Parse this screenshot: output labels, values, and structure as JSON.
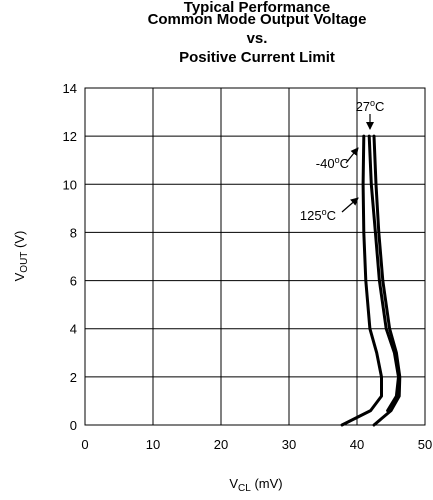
{
  "chart_data": {
    "type": "line",
    "title_partial": "Typical Performance",
    "title_lines": [
      "Common Mode Output Voltage",
      "vs.",
      "Positive Current Limit"
    ],
    "xlabel_main": "V",
    "xlabel_sub": "CL",
    "xlabel_unit": " (mV)",
    "ylabel_main": "V",
    "ylabel_sub": "OUT",
    "ylabel_unit": " (V)",
    "xlim": [
      0,
      50
    ],
    "ylim": [
      0,
      14
    ],
    "x_ticks": [
      "0",
      "10",
      "20",
      "30",
      "40",
      "50"
    ],
    "y_ticks": [
      "0",
      "2",
      "4",
      "6",
      "8",
      "10",
      "12",
      "14"
    ],
    "grid": true,
    "series": [
      {
        "name": "27°C",
        "points": [
          [
            42.5,
            0.0
          ],
          [
            45.0,
            0.6
          ],
          [
            46.2,
            1.2
          ],
          [
            46.3,
            2.0
          ],
          [
            45.8,
            3.0
          ],
          [
            44.8,
            4.0
          ],
          [
            43.8,
            6.0
          ],
          [
            43.2,
            8.0
          ],
          [
            42.8,
            10.0
          ],
          [
            42.5,
            12.0
          ]
        ]
      },
      {
        "name": "-40°C",
        "points": [
          [
            44.5,
            0.6
          ],
          [
            45.8,
            1.2
          ],
          [
            46.1,
            2.0
          ],
          [
            45.5,
            3.0
          ],
          [
            44.3,
            4.0
          ],
          [
            43.3,
            6.0
          ],
          [
            42.7,
            8.0
          ],
          [
            42.1,
            10.0
          ],
          [
            41.8,
            12.0
          ]
        ]
      },
      {
        "name": "125°C",
        "points": [
          [
            37.8,
            0.0
          ],
          [
            42.0,
            0.6
          ],
          [
            43.6,
            1.2
          ],
          [
            43.6,
            2.0
          ],
          [
            42.9,
            3.0
          ],
          [
            41.9,
            4.0
          ],
          [
            41.3,
            6.0
          ],
          [
            41.0,
            8.0
          ],
          [
            40.9,
            10.0
          ],
          [
            41.0,
            12.0
          ]
        ]
      }
    ],
    "annotations": [
      {
        "series": "27°C",
        "base": "27",
        "sup": "o",
        "unit": "C"
      },
      {
        "series": "-40°C",
        "base": "-40",
        "sup": "o",
        "unit": "C"
      },
      {
        "series": "125°C",
        "base": "125",
        "sup": "o",
        "unit": "C"
      }
    ]
  }
}
